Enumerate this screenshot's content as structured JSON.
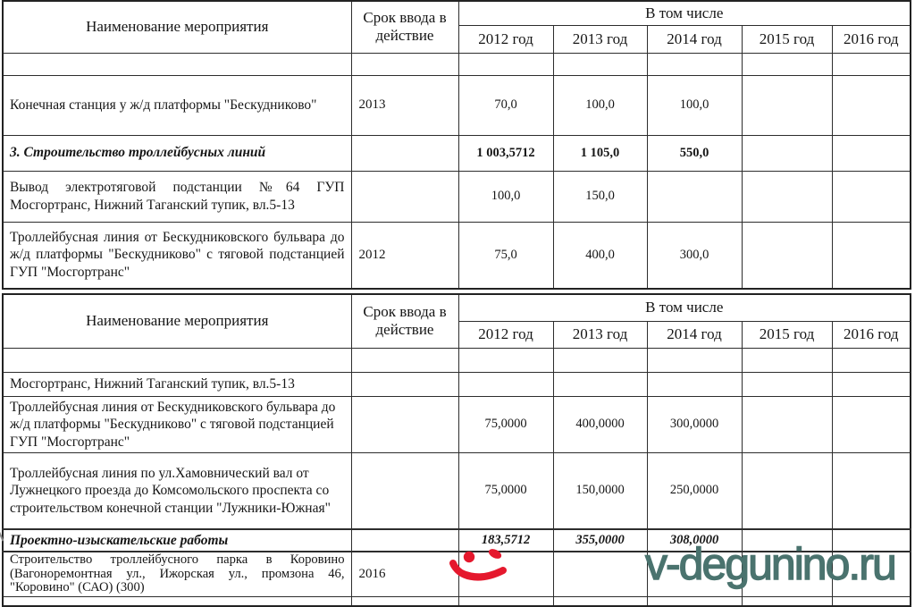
{
  "watermark": {
    "text": "v-degunino.ru",
    "color": "#4a736e"
  },
  "smiley_icon": {
    "name": "red-smiley-doodle",
    "color": "#e5182d"
  },
  "tables": [
    {
      "headers": {
        "name": "Наименование мероприятия",
        "term": "Срок ввода в действие",
        "group": "В том числе",
        "years": [
          "2012 год",
          "2013 год",
          "2014 год",
          "2015 год",
          "2016 год"
        ]
      },
      "rows": [
        {
          "type": "empty",
          "name": "",
          "term": "",
          "values": [
            "",
            "",
            "",
            "",
            ""
          ]
        },
        {
          "type": "item",
          "name": "Конечная станция у ж/д  платформы \"Бескудниково\"",
          "term": "2013",
          "values": [
            "70,0",
            "100,0",
            "100,0",
            "",
            ""
          ]
        },
        {
          "type": "section",
          "name": "3. Строительство троллейбусных линий",
          "term": "",
          "values": [
            "1 003,5712",
            "1 105,0",
            "550,0",
            "",
            ""
          ]
        },
        {
          "type": "item",
          "justify": true,
          "name": "Вывод электротяговой подстанции №64 ГУП Мосгортранс, Нижний Таганский тупик, вл.5-13",
          "term": "",
          "values": [
            "100,0",
            "150,0",
            "",
            "",
            ""
          ]
        },
        {
          "type": "item",
          "justify": true,
          "name": "Троллейбусная линия от Бескудниковского бульвара до ж/д платформы \"Бескудниково\" с тяговой подстанцией ГУП \"Мосгортранс\"",
          "term": "2012",
          "values": [
            "75,0",
            "400,0",
            "300,0",
            "",
            ""
          ]
        }
      ]
    },
    {
      "headers": {
        "name": "Наименование мероприятия",
        "term": "Срок ввода в действие",
        "group": "В том числе",
        "years": [
          "2012 год",
          "2013 год",
          "2014 год",
          "2015 год",
          "2016 год"
        ]
      },
      "rows": [
        {
          "type": "empty",
          "name": "",
          "term": "",
          "values": [
            "",
            "",
            "",
            "",
            ""
          ]
        },
        {
          "type": "item",
          "name": "Мосгортранс, Нижний Таганский тупик, вл.5-13",
          "term": "",
          "values": [
            "",
            "",
            "",
            "",
            ""
          ]
        },
        {
          "type": "item",
          "name": "Троллейбусная линия от Бескудниковского бульвара до ж/д платформы \"Бескудниково\" с тяговой подстанцией ГУП \"Мосгортранс\"",
          "term": "",
          "values": [
            "75,0000",
            "400,0000",
            "300,0000",
            "",
            ""
          ]
        },
        {
          "type": "item",
          "name": "Троллейбусная линия по ул.Хамовнический вал от  Лужнецкого проезда до Комсомольского проспекта со строительством конечной станции \"Лужники-Южная\"",
          "term": "",
          "values": [
            "75,0000",
            "150,0000",
            "250,0000",
            "",
            ""
          ]
        },
        {
          "type": "section",
          "name": "Проектно-изыскательские работы",
          "term": "",
          "values": [
            "183,5712",
            "355,0000",
            "308,0000",
            "",
            ""
          ]
        },
        {
          "type": "compact",
          "justify": true,
          "smiley": true,
          "name": "Строительство троллейбусного парка в Коровино (Вагоноремонтная ул., Ижорская ул., промзона 46, \"Коровино\" (САО) (300)",
          "term": "2016",
          "values": [
            "",
            "",
            "",
            "",
            ""
          ]
        },
        {
          "type": "partial",
          "name": "",
          "term": "",
          "values": [
            "",
            "",
            "",
            "",
            ""
          ]
        }
      ]
    }
  ]
}
